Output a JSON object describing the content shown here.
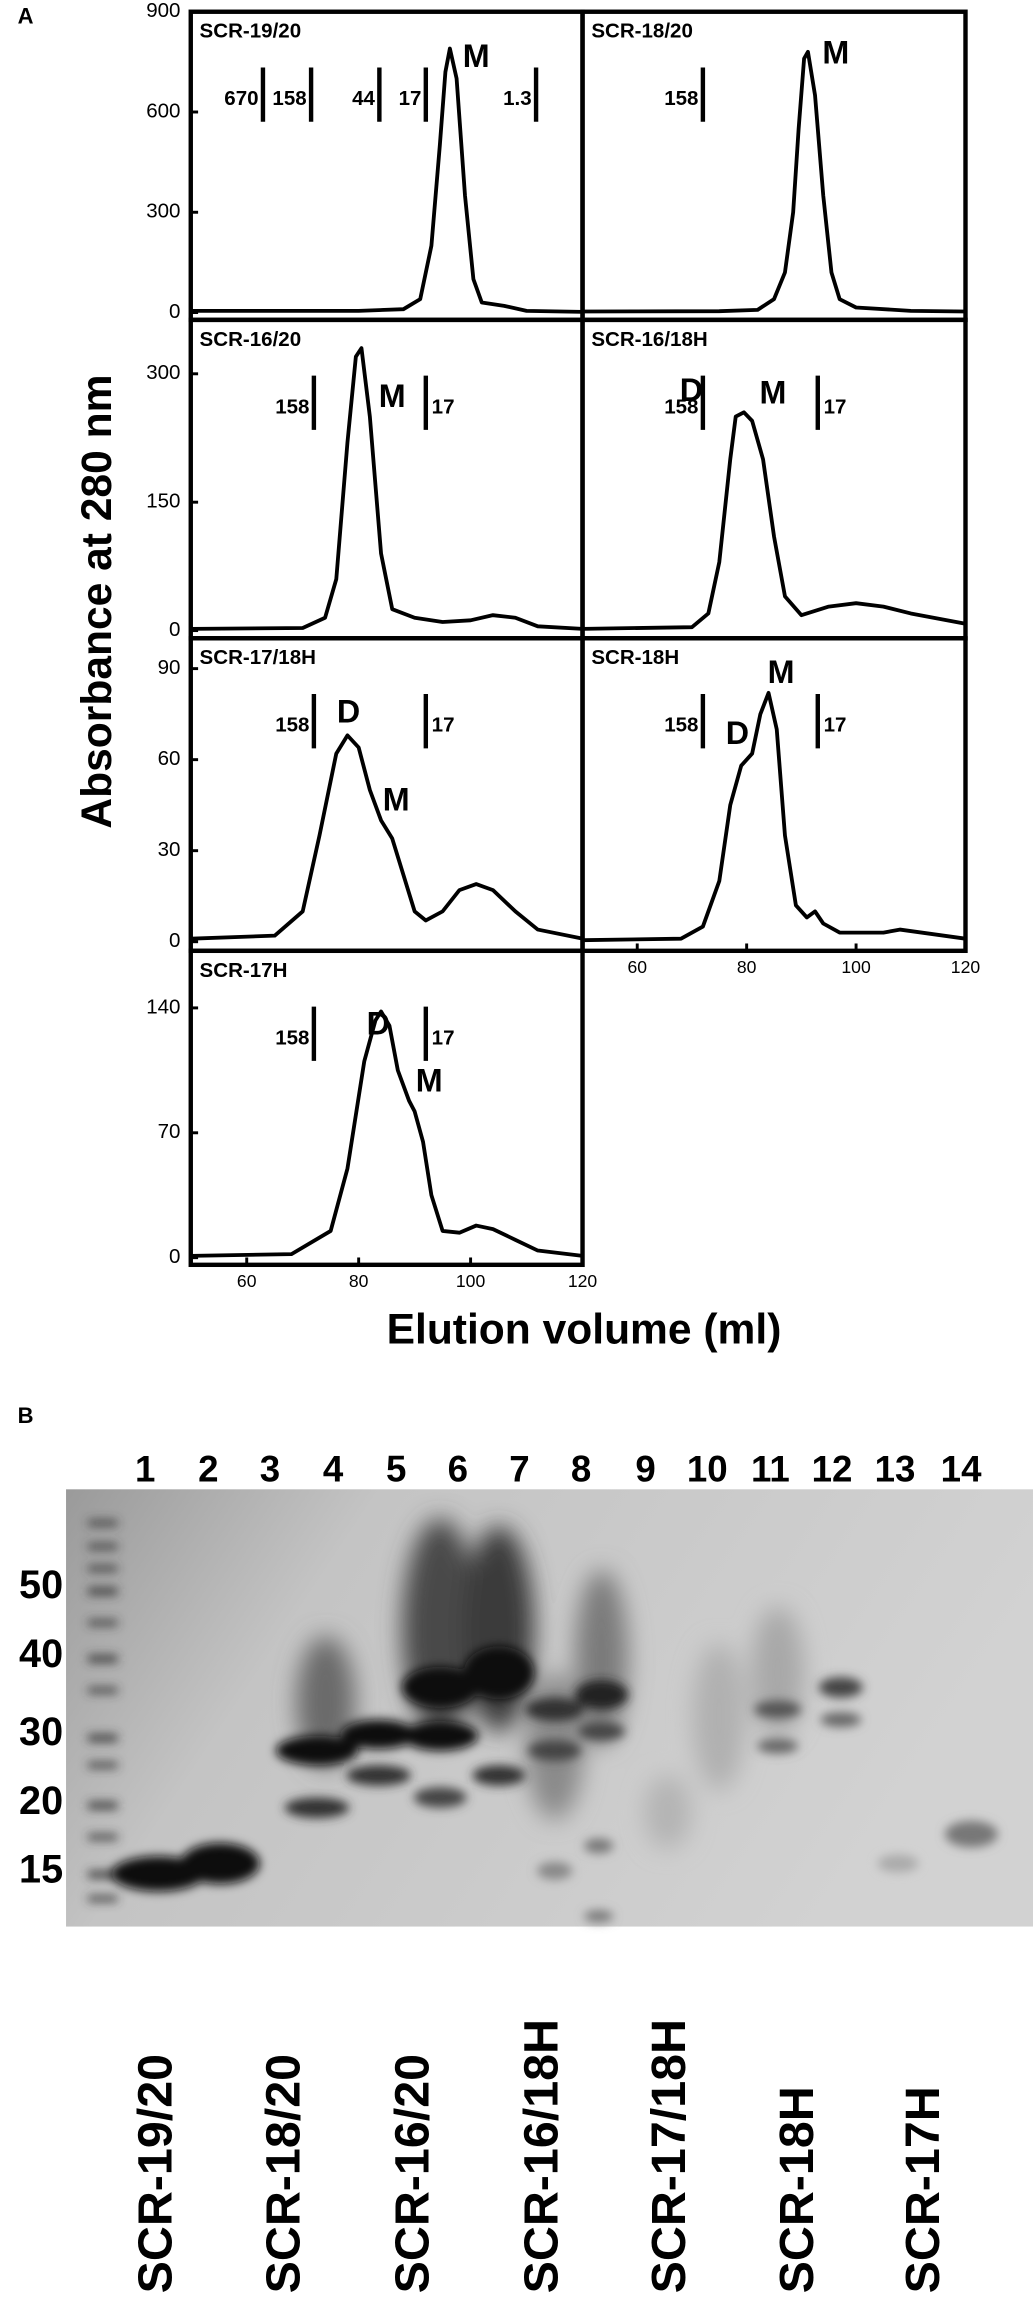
{
  "panel_labels": [
    "A",
    "B"
  ],
  "y_axis_label": "Absorbance at 280 nm",
  "x_axis_label": "Elution volume (ml)",
  "chart_data": [
    {
      "type": "line",
      "title": "SCR-19/20",
      "color": "#000000",
      "xlim": [
        50,
        120
      ],
      "ylim": [
        -22,
        900
      ],
      "yticks": [
        0,
        300,
        600,
        900
      ],
      "x": [
        50,
        80,
        88,
        91,
        93,
        94.5,
        95.5,
        96.3,
        97.5,
        99,
        100.5,
        102,
        106,
        110,
        120
      ],
      "values": [
        5,
        5,
        10,
        40,
        200,
        500,
        720,
        790,
        700,
        350,
        100,
        30,
        20,
        5,
        2
      ],
      "markers": [
        {
          "label": "670",
          "x": 62.9,
          "label_side": "left"
        },
        {
          "label": "158",
          "x": 71.5,
          "label_side": "left"
        },
        {
          "label": "44",
          "x": 83.7,
          "label_side": "left"
        },
        {
          "label": "17",
          "x": 92,
          "label_side": "left"
        },
        {
          "label": "1.3",
          "x": 111.7,
          "label_side": "left"
        }
      ],
      "annotations": [
        {
          "text": "M",
          "x": 101,
          "y": 760
        }
      ]
    },
    {
      "type": "line",
      "title": "SCR-18/20",
      "color": "#000000",
      "xlim": [
        50,
        120
      ],
      "ylim": [
        -22,
        900
      ],
      "x": [
        50,
        75,
        82,
        85,
        87,
        88.5,
        89.5,
        90.5,
        91.2,
        92.5,
        94,
        95.5,
        97,
        100,
        110,
        120
      ],
      "values": [
        3,
        4,
        8,
        40,
        120,
        300,
        550,
        760,
        780,
        650,
        350,
        120,
        40,
        15,
        5,
        3
      ],
      "markers": [
        {
          "label": "158",
          "x": 72,
          "label_side": "left"
        }
      ],
      "annotations": [
        {
          "text": "M",
          "x": 96.3,
          "y": 770
        }
      ]
    },
    {
      "type": "line",
      "title": "SCR-16/20",
      "color": "#000000",
      "xlim": [
        50,
        120
      ],
      "ylim": [
        -9,
        363
      ],
      "yticks": [
        0,
        150,
        300
      ],
      "x": [
        50,
        70,
        74,
        76,
        78,
        79.5,
        80.5,
        82,
        84,
        86,
        90,
        95,
        100,
        104,
        108,
        112,
        120
      ],
      "values": [
        2,
        3,
        15,
        60,
        220,
        320,
        330,
        250,
        90,
        25,
        15,
        10,
        12,
        18,
        15,
        5,
        2
      ],
      "markers": [
        {
          "label": "158",
          "x": 72,
          "label_side": "left"
        },
        {
          "label": "17",
          "x": 92,
          "label_side": "right"
        }
      ],
      "annotations": [
        {
          "text": "M",
          "x": 86,
          "y": 271
        }
      ]
    },
    {
      "type": "line",
      "title": "SCR-16/18H",
      "color": "#000000",
      "xlim": [
        50,
        120
      ],
      "ylim": [
        -9,
        363
      ],
      "x": [
        50,
        70,
        73,
        75,
        77,
        78,
        79.5,
        81,
        83,
        85,
        87,
        90,
        95,
        100,
        105,
        110,
        120
      ],
      "values": [
        2,
        4,
        20,
        80,
        200,
        250,
        255,
        245,
        200,
        110,
        40,
        18,
        28,
        32,
        28,
        20,
        8
      ],
      "markers": [
        {
          "label": "158",
          "x": 72,
          "label_side": "left"
        },
        {
          "label": "17",
          "x": 93,
          "label_side": "right"
        }
      ],
      "annotations": [
        {
          "text": "D",
          "x": 69.9,
          "y": 278
        },
        {
          "text": "M",
          "x": 84.8,
          "y": 275
        }
      ]
    },
    {
      "type": "line",
      "title": "SCR-17/18H",
      "color": "#000000",
      "xlim": [
        50,
        120
      ],
      "ylim": [
        -3,
        100
      ],
      "yticks": [
        0,
        30,
        60,
        90
      ],
      "x": [
        50,
        65,
        70,
        73,
        76,
        78,
        80,
        82,
        84,
        86,
        88,
        90,
        92,
        95,
        98,
        101,
        104,
        108,
        112,
        120
      ],
      "values": [
        1,
        2,
        10,
        35,
        62,
        68,
        64,
        50,
        40,
        34,
        22,
        10,
        7,
        10,
        17,
        19,
        17,
        10,
        4,
        1
      ],
      "markers": [
        {
          "label": "158",
          "x": 72,
          "label_side": "left"
        },
        {
          "label": "17",
          "x": 92,
          "label_side": "right"
        }
      ],
      "annotations": [
        {
          "text": "D",
          "x": 78.2,
          "y": 75
        },
        {
          "text": "M",
          "x": 86.7,
          "y": 46
        }
      ]
    },
    {
      "type": "line",
      "title": "SCR-18H",
      "color": "#000000",
      "xlim": [
        50,
        120
      ],
      "ylim": [
        -3,
        100
      ],
      "xticks": [
        60,
        80,
        100,
        120
      ],
      "x": [
        50,
        68,
        72,
        75,
        77,
        79,
        81,
        82.5,
        84,
        85.5,
        87,
        89,
        91,
        92.5,
        94,
        97,
        105,
        108,
        120
      ],
      "values": [
        0.5,
        1,
        5,
        20,
        45,
        58,
        62,
        75,
        82,
        70,
        35,
        12,
        8,
        10,
        6,
        3,
        3,
        4,
        1
      ],
      "markers": [
        {
          "label": "158",
          "x": 72,
          "label_side": "left"
        },
        {
          "label": "17",
          "x": 93,
          "label_side": "right"
        }
      ],
      "annotations": [
        {
          "text": "D",
          "x": 78.3,
          "y": 68
        },
        {
          "text": "M",
          "x": 86.3,
          "y": 88
        }
      ]
    },
    {
      "type": "line",
      "title": "SCR-17H",
      "color": "#000000",
      "xlim": [
        50,
        120
      ],
      "ylim": [
        -4,
        172
      ],
      "yticks": [
        0,
        70,
        140
      ],
      "xticks": [
        60,
        80,
        100,
        120
      ],
      "x": [
        50,
        68,
        75,
        78,
        81,
        83,
        84,
        85.5,
        87,
        89,
        90,
        91.5,
        93,
        95,
        98,
        101,
        104,
        108,
        112,
        120
      ],
      "values": [
        1,
        2,
        15,
        50,
        110,
        133,
        138,
        130,
        105,
        88,
        82,
        65,
        35,
        15,
        14,
        18,
        16,
        10,
        4,
        1
      ],
      "markers": [
        {
          "label": "158",
          "x": 72,
          "label_side": "left"
        },
        {
          "label": "17",
          "x": 92,
          "label_side": "right"
        }
      ],
      "annotations": [
        {
          "text": "D",
          "x": 83.5,
          "y": 130
        },
        {
          "text": "M",
          "x": 92.6,
          "y": 98
        }
      ]
    }
  ],
  "gel": {
    "lane_numbers": [
      "1",
      "2",
      "3",
      "4",
      "5",
      "6",
      "7",
      "8",
      "9",
      "10",
      "11",
      "12",
      "13",
      "14"
    ],
    "size_markers": [
      "50",
      "40",
      "30",
      "20",
      "15"
    ],
    "sample_labels": [
      "SCR-19/20",
      "SCR-18/20",
      "SCR-16/20",
      "SCR-16/18H",
      "SCR-17/18H",
      "SCR-18H",
      "SCR-17H"
    ]
  }
}
